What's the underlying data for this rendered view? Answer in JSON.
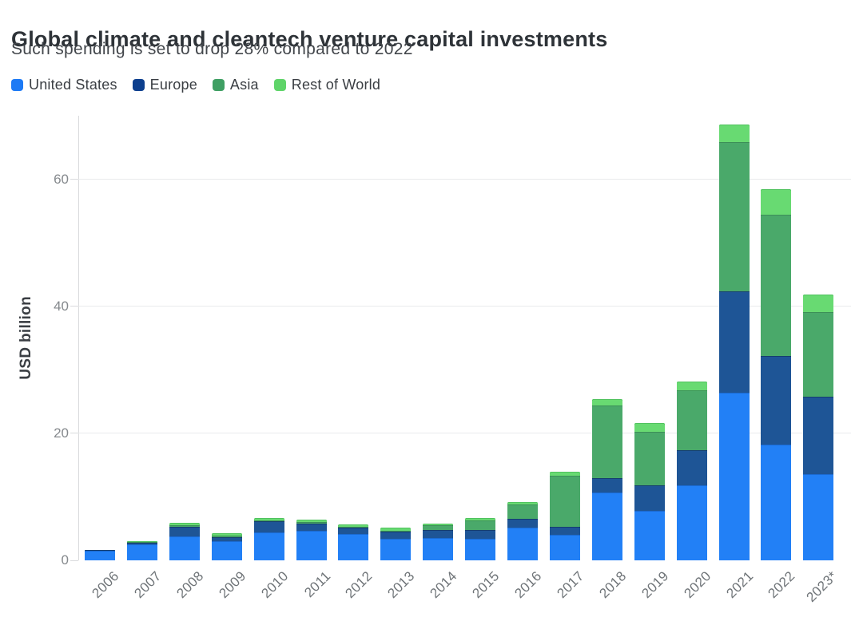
{
  "header": {
    "title": "Global climate and cleantech venture capital investments",
    "subtitle": "Such spending is set to drop 28% compared to 2022"
  },
  "y_axis": {
    "label": "USD billion",
    "ticks": [
      "0",
      "20",
      "40",
      "60"
    ]
  },
  "chart_data": {
    "type": "bar",
    "stacked": true,
    "title": "Global climate and cleantech venture capital investments",
    "subtitle": "Such spending is set to drop 28% compared to 2022",
    "xlabel": "",
    "ylabel": "USD billion",
    "ylim": [
      0,
      70
    ],
    "yticks": [
      0,
      20,
      40,
      60
    ],
    "grid": "horizontal",
    "legend_position": "top-left",
    "categories": [
      "2006",
      "2007",
      "2008",
      "2009",
      "2010",
      "2011",
      "2012",
      "2013",
      "2014",
      "2015",
      "2016",
      "2017",
      "2018",
      "2019",
      "2020",
      "2021",
      "2022",
      "2023*"
    ],
    "series": [
      {
        "name": "United States",
        "color": "#2280f6",
        "edge_color": "#1b6ad1",
        "legend_color": "#1d7af5",
        "values": [
          1.5,
          2.5,
          3.8,
          3.0,
          4.4,
          4.6,
          4.2,
          3.4,
          3.5,
          3.4,
          5.1,
          4.0,
          10.7,
          7.8,
          11.8,
          26.4,
          18.2,
          13.6
        ]
      },
      {
        "name": "Europe",
        "color": "#1e5596",
        "edge_color": "#153e70",
        "legend_color": "#0d3f8e",
        "values": [
          0.1,
          0.3,
          1.5,
          0.6,
          1.7,
          1.2,
          1.0,
          1.1,
          1.3,
          1.4,
          1.4,
          1.3,
          2.3,
          4.0,
          5.6,
          15.9,
          14.0,
          12.2
        ]
      },
      {
        "name": "Asia",
        "color": "#4aa96a",
        "edge_color": "#3c8f58",
        "legend_color": "#3f9f63",
        "values": [
          0.0,
          0.1,
          0.2,
          0.3,
          0.2,
          0.2,
          0.1,
          0.2,
          0.7,
          1.5,
          2.3,
          8.0,
          11.4,
          8.4,
          9.4,
          23.6,
          22.2,
          13.3
        ]
      },
      {
        "name": "Rest of World",
        "color": "#68da72",
        "edge_color": "#50c25e",
        "legend_color": "#5fd469",
        "values": [
          0.0,
          0.1,
          0.4,
          0.4,
          0.4,
          0.4,
          0.3,
          0.4,
          0.3,
          0.4,
          0.4,
          0.6,
          1.0,
          1.4,
          1.4,
          2.7,
          4.1,
          2.7
        ]
      }
    ]
  }
}
